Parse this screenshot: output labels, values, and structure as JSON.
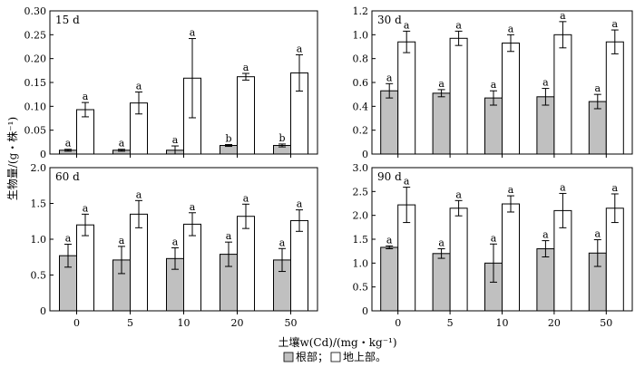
{
  "figure": {
    "y_axis_label": "生物量/(g・株⁻¹)",
    "x_axis_label": "土壤w(Cd)/(mg・kg⁻¹)",
    "legend": {
      "items": [
        {
          "name": "根部；",
          "fill": "#c0c0c0"
        },
        {
          "name": "地上部。",
          "fill": "#ffffff"
        }
      ]
    },
    "colors": {
      "root": "#c0c0c0",
      "shoot": "#ffffff",
      "stroke": "#000000"
    }
  },
  "chart_data": [
    {
      "type": "bar",
      "title": "15 d",
      "categories": [
        "0",
        "5",
        "10",
        "20",
        "50"
      ],
      "ylim": [
        0,
        0.3
      ],
      "yticks": [
        "0",
        "0.05",
        "0.10",
        "0.15",
        "0.20",
        "0.25",
        "0.30"
      ],
      "show_x_ticklabels": false,
      "series": [
        {
          "name": "根部",
          "values": [
            0.008,
            0.008,
            0.008,
            0.018,
            0.018
          ],
          "errors": [
            0.002,
            0.002,
            0.009,
            0.002,
            0.003
          ],
          "letters": [
            "a",
            "a",
            "a",
            "b",
            "b"
          ]
        },
        {
          "name": "地上部",
          "values": [
            0.093,
            0.107,
            0.159,
            0.162,
            0.17
          ],
          "errors": [
            0.015,
            0.023,
            0.083,
            0.007,
            0.038
          ],
          "letters": [
            "a",
            "a",
            "a",
            "a",
            "a"
          ]
        }
      ]
    },
    {
      "type": "bar",
      "title": "30 d",
      "categories": [
        "0",
        "5",
        "10",
        "20",
        "50"
      ],
      "ylim": [
        0,
        1.2
      ],
      "yticks": [
        "0",
        "0.2",
        "0.4",
        "0.6",
        "0.8",
        "1.0",
        "1.2"
      ],
      "show_x_ticklabels": false,
      "series": [
        {
          "name": "根部",
          "values": [
            0.53,
            0.51,
            0.47,
            0.48,
            0.44
          ],
          "errors": [
            0.06,
            0.03,
            0.06,
            0.07,
            0.06
          ],
          "letters": [
            "a",
            "a",
            "a",
            "a",
            "a"
          ]
        },
        {
          "name": "地上部",
          "values": [
            0.94,
            0.97,
            0.93,
            1.0,
            0.94
          ],
          "errors": [
            0.09,
            0.06,
            0.07,
            0.11,
            0.1
          ],
          "letters": [
            "a",
            "a",
            "a",
            "a",
            "a"
          ]
        }
      ]
    },
    {
      "type": "bar",
      "title": "60 d",
      "categories": [
        "0",
        "5",
        "10",
        "20",
        "50"
      ],
      "ylim": [
        0,
        2.0
      ],
      "yticks": [
        "0",
        "0.5",
        "1.0",
        "1.5",
        "2.0"
      ],
      "show_x_ticklabels": true,
      "series": [
        {
          "name": "根部",
          "values": [
            0.77,
            0.71,
            0.73,
            0.79,
            0.71
          ],
          "errors": [
            0.16,
            0.19,
            0.15,
            0.17,
            0.16
          ],
          "letters": [
            "a",
            "a",
            "a",
            "a",
            "a"
          ]
        },
        {
          "name": "地上部",
          "values": [
            1.2,
            1.35,
            1.21,
            1.32,
            1.26
          ],
          "errors": [
            0.15,
            0.19,
            0.16,
            0.17,
            0.15
          ],
          "letters": [
            "a",
            "a",
            "a",
            "a",
            "a"
          ]
        }
      ]
    },
    {
      "type": "bar",
      "title": "90 d",
      "categories": [
        "0",
        "5",
        "10",
        "20",
        "50"
      ],
      "ylim": [
        0,
        3.0
      ],
      "yticks": [
        "0",
        "0.5",
        "1.0",
        "1.5",
        "2.0",
        "2.5",
        "3.0"
      ],
      "show_x_ticklabels": true,
      "series": [
        {
          "name": "根部",
          "values": [
            1.33,
            1.2,
            1.0,
            1.3,
            1.21
          ],
          "errors": [
            0.03,
            0.1,
            0.4,
            0.17,
            0.28
          ],
          "letters": [
            "a",
            "a",
            "a",
            "a",
            "a"
          ]
        },
        {
          "name": "地上部",
          "values": [
            2.22,
            2.15,
            2.24,
            2.1,
            2.15
          ],
          "errors": [
            0.37,
            0.16,
            0.17,
            0.36,
            0.3
          ],
          "letters": [
            "a",
            "a",
            "a",
            "a",
            "a"
          ]
        }
      ]
    }
  ]
}
